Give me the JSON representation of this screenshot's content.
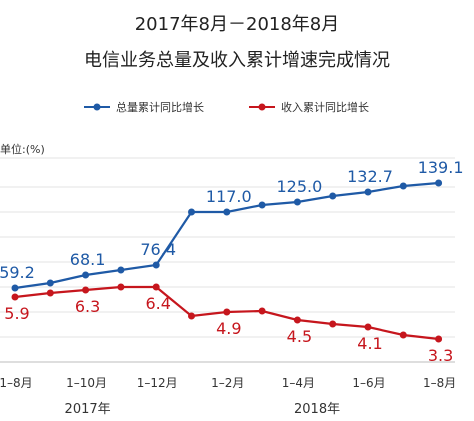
{
  "chart_data": {
    "type": "line",
    "title": "2017年8月－2018年8月",
    "subtitle": "电信业务总量及收入累计增速完成情况",
    "unit_label": "单位:(%)",
    "x": [
      "2017-8",
      "2017-9",
      "2017-10",
      "2017-11",
      "2017-12",
      "2018-1",
      "2018-2",
      "2018-3",
      "2018-4",
      "2018-5",
      "2018-6",
      "2018-7",
      "2018-8"
    ],
    "tick_labels": [
      "1–8月",
      "1–10月",
      "1–12月",
      "1–2月",
      "1–4月",
      "1–6月",
      "1–8月"
    ],
    "tick_indices": [
      0,
      2,
      4,
      6,
      8,
      10,
      12
    ],
    "year_labels": [
      {
        "label": "2017年",
        "at": 2
      },
      {
        "label": "2018年",
        "at": 8.5
      }
    ],
    "series": [
      {
        "name": "总量累计同比增长",
        "color": "#1f5aa6",
        "values": [
          59.2,
          63.5,
          68.1,
          71.8,
          76.4,
          117.0,
          117.0,
          121.5,
          125.0,
          129.0,
          132.7,
          137.0,
          139.1
        ],
        "labeled": [
          0,
          2,
          4,
          6,
          8,
          10,
          12
        ]
      },
      {
        "name": "收入累计同比增长",
        "color": "#c6161d",
        "values": [
          5.9,
          6.1,
          6.3,
          6.4,
          6.4,
          5.0,
          4.9,
          5.0,
          4.5,
          4.3,
          4.1,
          3.5,
          3.3
        ],
        "labeled": [
          0,
          2,
          4,
          6,
          8,
          10,
          12
        ]
      }
    ],
    "grid": true,
    "legend_position": "top"
  }
}
